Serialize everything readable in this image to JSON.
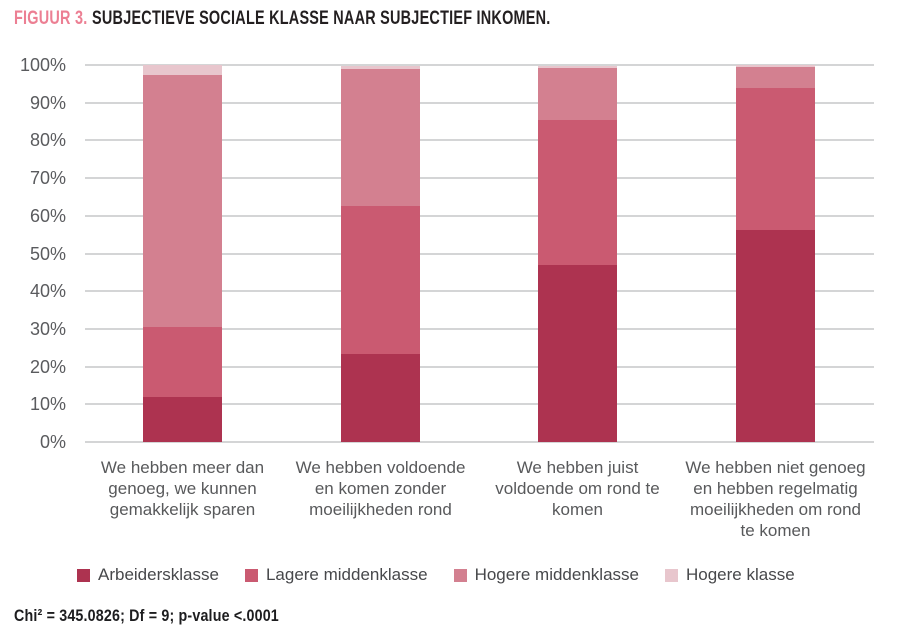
{
  "title": {
    "prefix": "FIGUUR 3.",
    "text": "SUBJECTIEVE SOCIALE KLASSE NAAR SUBJECTIEF INKOMEN."
  },
  "footnote": "Chi² = 345.0826; Df = 9; p-value <.0001",
  "colors": {
    "title_accent": "#ec7f93",
    "title_text": "#231f20",
    "axis_text": "#5a5b5e",
    "category_text": "#58595b",
    "gridline": "#d4d5d6",
    "legend_text": "#47484b",
    "footnote_text": "#1d1d1f",
    "background": "#ffffff"
  },
  "chart_data": {
    "type": "bar",
    "stacked": true,
    "percent": true,
    "title": "FIGUUR 3. SUBJECTIEVE SOCIALE KLASSE NAAR SUBJECTIEF INKOMEN.",
    "xlabel": "",
    "ylabel": "",
    "ylim": [
      0,
      100
    ],
    "ytick_step": 10,
    "ytick_suffix": "%",
    "grid": true,
    "legend_position": "bottom",
    "categories": [
      "We hebben meer dan genoeg, we kunnen gemakkelijk sparen",
      "We hebben voldoende en komen zonder moeilijkheden rond",
      "We hebben juist voldoende om rond te komen",
      "We hebben niet genoeg en hebben regelmatig moeilijkheden om rond te komen"
    ],
    "category_lines": [
      [
        "We hebben meer dan",
        "genoeg, we kunnen",
        "gemakkelijk sparen"
      ],
      [
        "We hebben voldoende",
        "en komen zonder",
        "moeilijkheden rond"
      ],
      [
        "We hebben juist",
        "voldoende om rond te",
        "komen"
      ],
      [
        "We hebben niet genoeg",
        "en hebben regelmatig",
        "moeilijkheden om rond",
        "te komen"
      ]
    ],
    "series": [
      {
        "name": "Arbeidersklasse",
        "color": "#ad3350",
        "values": [
          12.0,
          23.3,
          47.0,
          56.2
        ]
      },
      {
        "name": "Lagere middenklasse",
        "color": "#ca5a71",
        "values": [
          18.6,
          39.4,
          38.3,
          37.7
        ]
      },
      {
        "name": "Hogere middenklasse",
        "color": "#d38090",
        "values": [
          66.9,
          36.2,
          14.0,
          5.6
        ]
      },
      {
        "name": "Hogere klasse",
        "color": "#e8c6cd",
        "values": [
          2.5,
          0.8,
          0.5,
          0.5
        ]
      }
    ],
    "footnote": "Chi² = 345.0826; Df = 9; p-value <.0001"
  }
}
